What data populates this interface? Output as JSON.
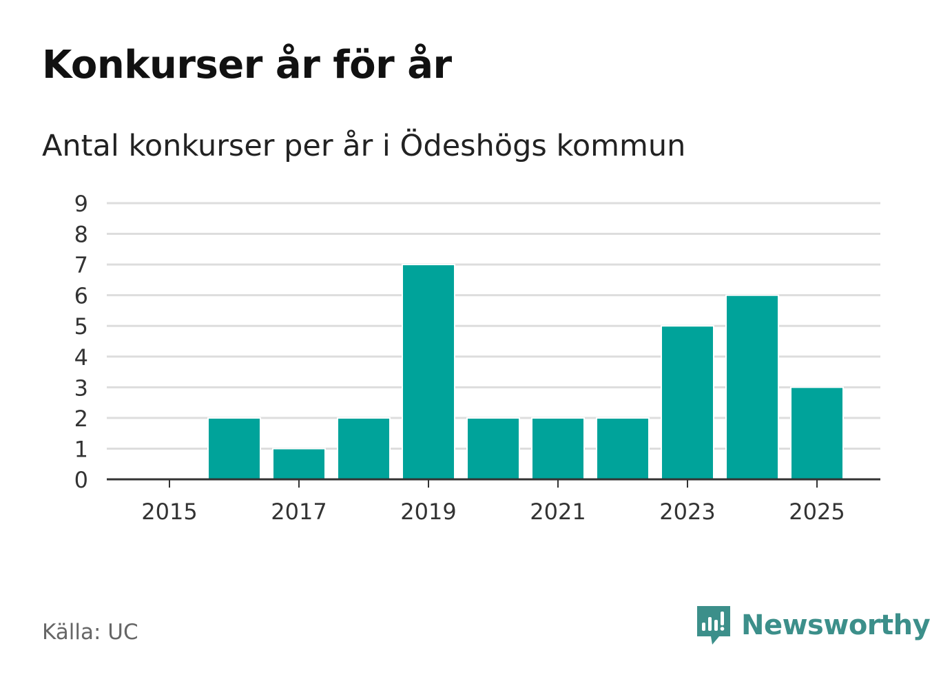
{
  "title": "Konkurser år för år",
  "subtitle": "Antal konkurser per år i Ödeshögs kommun",
  "source": "Källa: UC",
  "brand": {
    "name": "Newsworthy",
    "icon": "newsworthy-logo-icon",
    "color": "#3c8f8a"
  },
  "colors": {
    "bar": "#00a39a",
    "grid": "#dddddd",
    "axis": "#333333",
    "tick_text": "#333333"
  },
  "chart_data": {
    "type": "bar",
    "categories": [
      "2015",
      "2016",
      "2017",
      "2018",
      "2019",
      "2020",
      "2021",
      "2022",
      "2023",
      "2024",
      "2025"
    ],
    "values": [
      0,
      2,
      1,
      2,
      7,
      2,
      2,
      2,
      5,
      6,
      3
    ],
    "xtick_labels": [
      "2015",
      "2017",
      "2019",
      "2021",
      "2023",
      "2025"
    ],
    "ytick_labels": [
      "0",
      "1",
      "2",
      "3",
      "4",
      "5",
      "6",
      "7",
      "8",
      "9"
    ],
    "ylim": [
      0,
      9
    ],
    "grid": true,
    "legend": "none",
    "xlabel": "",
    "ylabel": ""
  }
}
